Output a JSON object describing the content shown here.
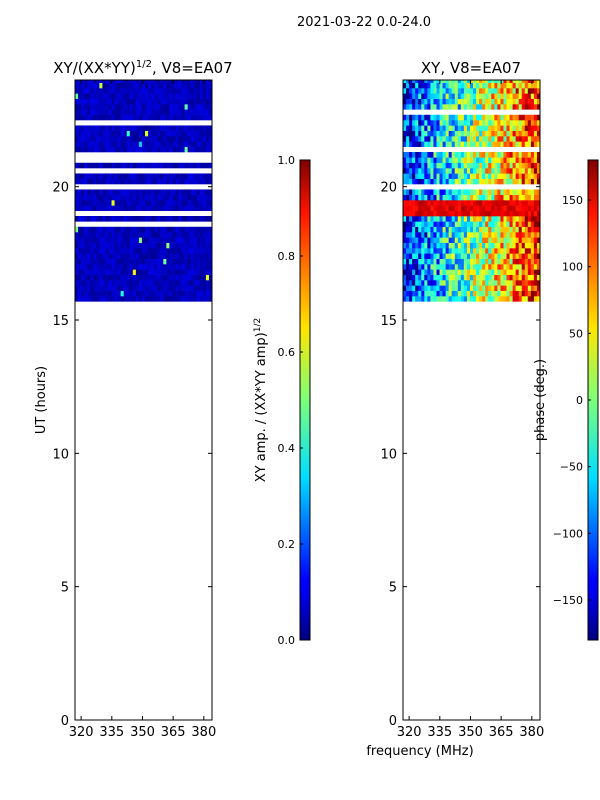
{
  "suptitle": "2021-03-22 0.0-24.0",
  "chart_data": [
    {
      "type": "heatmap",
      "title_main": "XY/(XX*YY)",
      "title_exp": "1/2",
      "title_tail": ", V8=EA07",
      "xlabel": "",
      "ylabel": "UT (hours)",
      "xlim": [
        317,
        384
      ],
      "ylim": [
        0,
        24
      ],
      "xticks": [
        320,
        335,
        350,
        365,
        380
      ],
      "yticks": [
        0,
        5,
        10,
        15,
        20
      ],
      "data_ut_range": [
        15.7,
        23.9
      ],
      "colorbar": {
        "label_main": "XY amp. / (XX*YY amp)",
        "label_exp": "1/2",
        "range": [
          0,
          1
        ],
        "ticks": [
          "0.0",
          "0.2",
          "0.4",
          "0.6",
          "0.8",
          "1.0"
        ],
        "tick_values": [
          0,
          0.2,
          0.4,
          0.6,
          0.8,
          1.0
        ]
      }
    },
    {
      "type": "heatmap",
      "title": "XY, V8=EA07",
      "xlabel": "frequency (MHz)",
      "ylabel": "",
      "xlim": [
        317,
        384
      ],
      "ylim": [
        0,
        24
      ],
      "xticks": [
        320,
        335,
        350,
        365,
        380
      ],
      "yticks": [
        0,
        5,
        10,
        15,
        20
      ],
      "data_ut_range": [
        15.7,
        23.9
      ],
      "colorbar": {
        "label": "phase (deg.)",
        "range": [
          -180,
          180
        ],
        "ticks": [
          "−150",
          "−100",
          "−50",
          "0",
          "50",
          "100",
          "150"
        ],
        "tick_values": [
          -150,
          -100,
          -50,
          0,
          50,
          100,
          150
        ]
      }
    }
  ]
}
